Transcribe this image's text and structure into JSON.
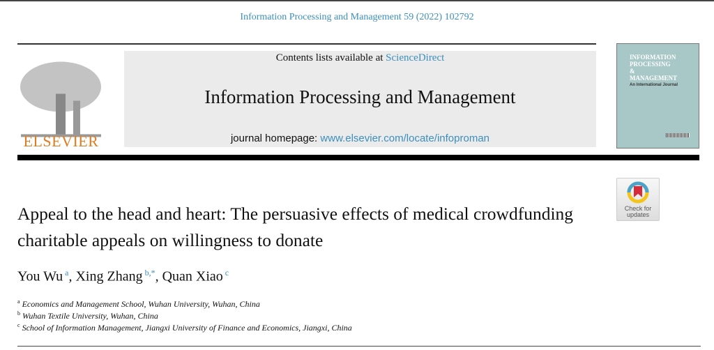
{
  "citation": "Information Processing and Management 59 (2022) 102792",
  "masthead": {
    "contents_prefix": "Contents lists available at ",
    "contents_link": "ScienceDirect",
    "journal_title": "Information Processing and Management",
    "homepage_prefix": "journal homepage: ",
    "homepage_link": "www.elsevier.com/locate/infoproman"
  },
  "publisher_logo": "ELSEVIER",
  "cover": {
    "line1": "INFORMATION",
    "line2": "PROCESSING",
    "line3": "&",
    "line4": "MANAGEMENT",
    "subtitle": "An International Journal"
  },
  "check_updates": {
    "line1": "Check for",
    "line2": "updates"
  },
  "title": "Appeal to the head and heart: The persuasive effects of medical crowdfunding charitable appeals on willingness to donate",
  "authors": [
    {
      "name": "You Wu",
      "sup": "a"
    },
    {
      "name": "Xing Zhang",
      "sup": "b,*"
    },
    {
      "name": "Quan Xiao",
      "sup": "c"
    }
  ],
  "affiliations": [
    {
      "sup": "a",
      "text": "Economics and Management School, Wuhan University, Wuhan, China"
    },
    {
      "sup": "b",
      "text": "Wuhan Textile University, Wuhan, China"
    },
    {
      "sup": "c",
      "text": "School of Information Management, Jiangxi University of Finance and Economics, Jiangxi, China"
    }
  ],
  "colors": {
    "link": "#3b8fbd",
    "elsevier": "#e07b1f",
    "cover": "#a8c8c7"
  }
}
